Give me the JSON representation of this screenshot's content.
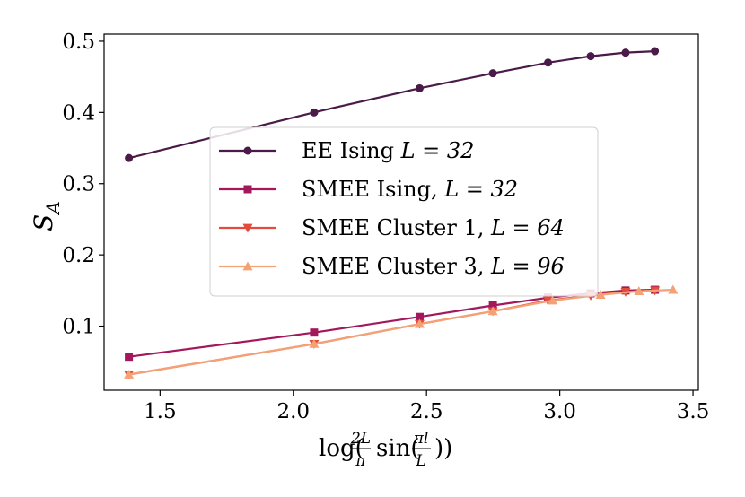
{
  "chart_data": {
    "type": "line",
    "title": "",
    "xlabel": "log(2L/π sin(πl/L))",
    "ylabel": "S_A",
    "xlim": [
      1.29,
      3.52
    ],
    "ylim": [
      0.01,
      0.51
    ],
    "xticks": [
      1.5,
      2.0,
      2.5,
      3.0,
      3.5
    ],
    "xtick_labels": [
      "1.5",
      "2.0",
      "2.5",
      "3.0",
      "3.5"
    ],
    "yticks": [
      0.1,
      0.2,
      0.3,
      0.4,
      0.5
    ],
    "ytick_labels": [
      "0.1",
      "0.2",
      "0.3",
      "0.4",
      "0.5"
    ],
    "grid": false,
    "legend_position": "center",
    "series": [
      {
        "name": "EE Ising L = 32",
        "label_text": "EE Ising",
        "label_math": "L = 32",
        "marker": "circle",
        "color": "#4a1a48",
        "x": [
          1.383,
          2.078,
          2.474,
          2.749,
          2.956,
          3.116,
          3.247,
          3.357
        ],
        "y": [
          0.336,
          0.4,
          0.434,
          0.455,
          0.47,
          0.479,
          0.484,
          0.486
        ]
      },
      {
        "name": "SMEE Ising, L = 32",
        "label_text": "SMEE Ising,",
        "label_math": "L = 32",
        "marker": "square",
        "color": "#a3185c",
        "x": [
          1.383,
          2.078,
          2.474,
          2.749,
          2.956,
          3.116,
          3.247,
          3.357
        ],
        "y": [
          0.057,
          0.091,
          0.113,
          0.129,
          0.14,
          0.146,
          0.15,
          0.151
        ]
      },
      {
        "name": "SMEE Cluster 1, L = 64",
        "label_text": "SMEE Cluster 1,",
        "label_math": "L = 64",
        "marker": "triangle-down",
        "color": "#e24c3e",
        "x": [
          1.383,
          2.078,
          2.474,
          2.749,
          2.956,
          3.116,
          3.247,
          3.357
        ],
        "y": [
          0.032,
          0.075,
          0.103,
          0.121,
          0.136,
          0.143,
          0.148,
          0.15
        ]
      },
      {
        "name": "SMEE Cluster 3, L = 96",
        "label_text": "SMEE Cluster 3,",
        "label_math": "L = 96",
        "marker": "triangle-up",
        "color": "#f4a275",
        "x": [
          1.383,
          2.078,
          2.474,
          2.749,
          2.973,
          3.153,
          3.297,
          3.425
        ],
        "y": [
          0.032,
          0.075,
          0.103,
          0.121,
          0.136,
          0.144,
          0.149,
          0.151
        ]
      }
    ]
  }
}
